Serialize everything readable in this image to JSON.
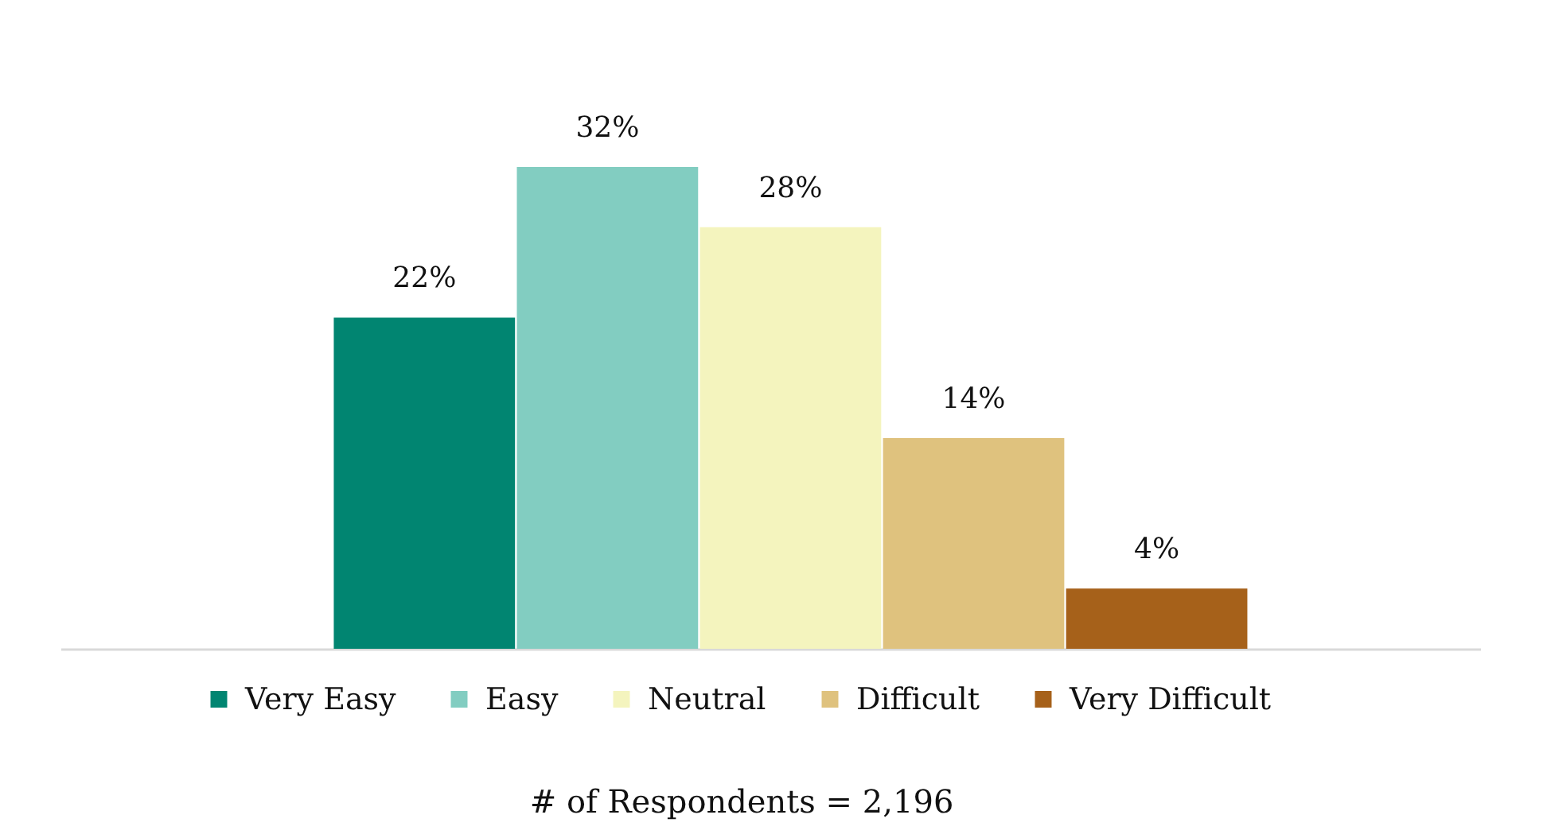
{
  "chart_data": {
    "type": "bar",
    "categories": [
      null
    ],
    "series": [
      {
        "name": "Very Easy",
        "color": "#018571",
        "values": [
          22
        ],
        "value_labels": [
          "22%"
        ]
      },
      {
        "name": "Easy",
        "color": "#82cdc1",
        "values": [
          32
        ],
        "value_labels": [
          "32%"
        ]
      },
      {
        "name": "Neutral",
        "color": "#f4f4be",
        "values": [
          28
        ],
        "value_labels": [
          "28%"
        ]
      },
      {
        "name": "Difficult",
        "color": "#dfc27e",
        "values": [
          14
        ],
        "value_labels": [
          "14%"
        ]
      },
      {
        "name": "Very Difficult",
        "color": "#a6611a",
        "values": [
          4
        ],
        "value_labels": [
          "4%"
        ]
      }
    ],
    "tick_labels": false,
    "grid": false,
    "legend": "bottom",
    "annotations": [
      "# of Respondents = 2,196"
    ]
  }
}
